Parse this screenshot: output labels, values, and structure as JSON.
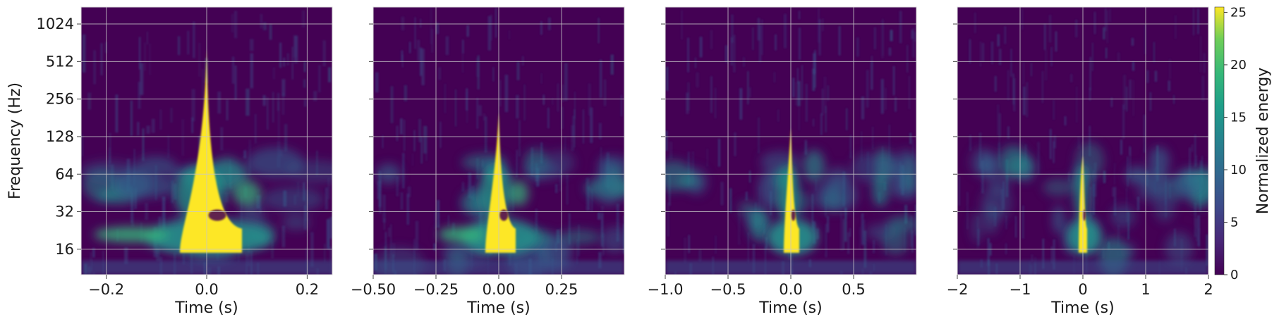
{
  "chart_data": [
    {
      "type": "heatmap",
      "xlabel": "Time (s)",
      "ylabel": "Frequency (Hz)",
      "xlim": [
        -0.25,
        0.25
      ],
      "ylim": [
        10,
        1400
      ],
      "yscale": "log2",
      "xticks": [
        -0.2,
        0.0,
        0.2
      ],
      "xtick_labels": [
        "−0.2",
        "0.0",
        "0.2"
      ],
      "yticks": [
        16,
        32,
        64,
        128,
        256,
        512,
        1024
      ],
      "ytick_labels": [
        "16",
        "32",
        "64",
        "128",
        "256",
        "512",
        "1024"
      ],
      "grid": true,
      "cmap": "viridis"
    },
    {
      "type": "heatmap",
      "xlabel": "Time (s)",
      "xlim": [
        -0.5,
        0.5
      ],
      "ylim": [
        10,
        1400
      ],
      "yscale": "log2",
      "xticks": [
        -0.5,
        -0.25,
        0.0,
        0.25
      ],
      "xtick_labels": [
        "−0.50",
        "−0.25",
        "0.00",
        "0.25"
      ],
      "yticks": [
        16,
        32,
        64,
        128,
        256,
        512,
        1024
      ],
      "grid": true,
      "cmap": "viridis"
    },
    {
      "type": "heatmap",
      "xlabel": "Time (s)",
      "xlim": [
        -1.0,
        1.0
      ],
      "ylim": [
        10,
        1400
      ],
      "yscale": "log2",
      "xticks": [
        -1.0,
        -0.5,
        0.0,
        0.5
      ],
      "xtick_labels": [
        "−1.0",
        "−0.5",
        "0.0",
        "0.5"
      ],
      "yticks": [
        16,
        32,
        64,
        128,
        256,
        512,
        1024
      ],
      "grid": true,
      "cmap": "viridis"
    },
    {
      "type": "heatmap",
      "xlabel": "Time (s)",
      "xlim": [
        -2,
        2
      ],
      "ylim": [
        10,
        1400
      ],
      "yscale": "log2",
      "xticks": [
        -2,
        -1,
        0,
        1,
        2
      ],
      "xtick_labels": [
        "−2",
        "−1",
        "0",
        "1",
        "2"
      ],
      "yticks": [
        16,
        32,
        64,
        128,
        256,
        512,
        1024
      ],
      "grid": true,
      "cmap": "viridis"
    }
  ],
  "colorbar": {
    "label": "Normalized energy",
    "range": [
      0,
      25.5
    ],
    "ticks": [
      0,
      5,
      10,
      15,
      20,
      25
    ],
    "tick_labels": [
      "0",
      "5",
      "10",
      "15",
      "20",
      "25"
    ]
  },
  "colors": {
    "background": "#440154",
    "mid": "#21918c",
    "peak": "#fde725",
    "grid": "#c8c8c8"
  }
}
